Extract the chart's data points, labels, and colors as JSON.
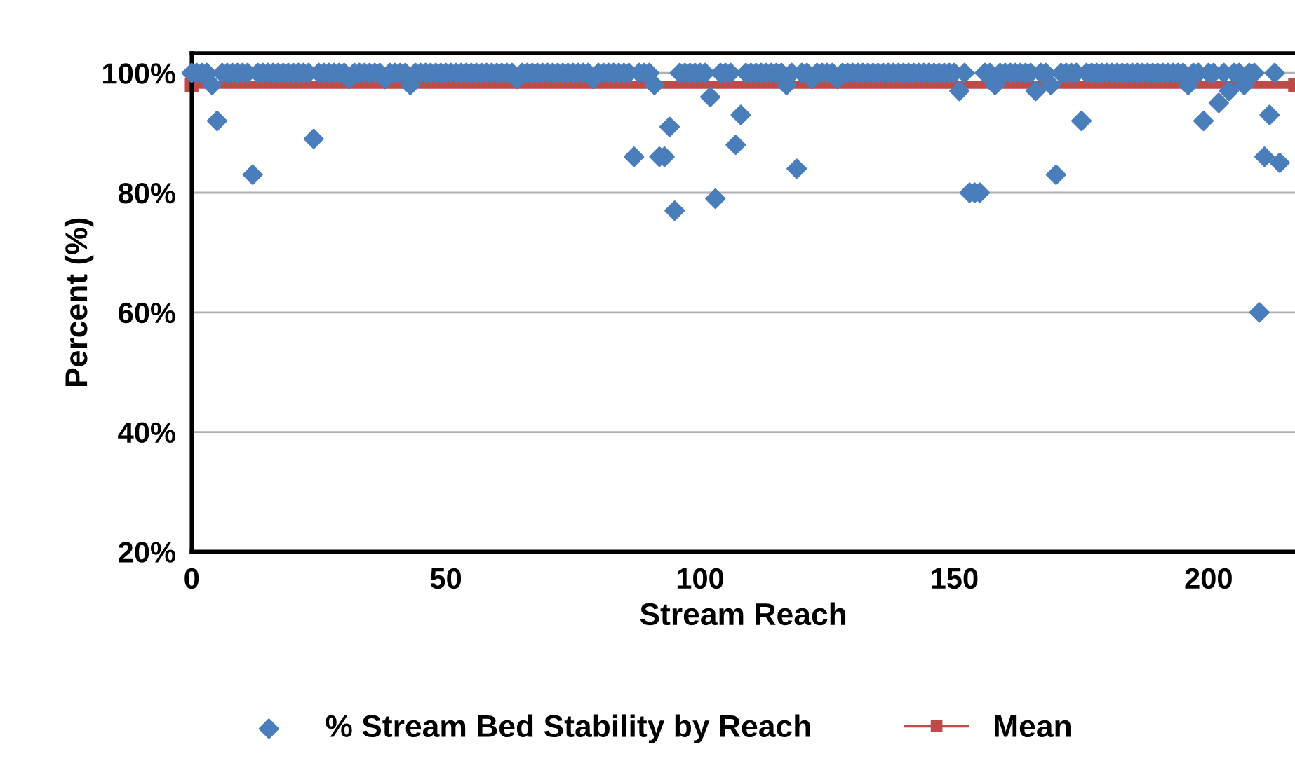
{
  "chart_data": {
    "type": "scatter",
    "xlabel": "Stream Reach",
    "ylabel": "Percent (%)",
    "xlim": [
      0,
      217
    ],
    "xticks": [
      0,
      50,
      100,
      150,
      200
    ],
    "ylim": [
      20,
      103.3
    ],
    "yticks": [
      {
        "value": 20,
        "label": "20%"
      },
      {
        "value": 40,
        "label": "40%"
      },
      {
        "value": 60,
        "label": "60%"
      },
      {
        "value": 80,
        "label": "80%"
      },
      {
        "value": 100,
        "label": "100%"
      }
    ],
    "grid": "y",
    "legend": "bottom",
    "series": [
      {
        "name": "% Stream Bed Stability by Reach",
        "marker": "diamond",
        "color": "#4a7ebb",
        "x": [
          0,
          1,
          2,
          3,
          4,
          5,
          6,
          7,
          8,
          9,
          10,
          11,
          12,
          13,
          14,
          15,
          16,
          17,
          18,
          19,
          20,
          21,
          22,
          23,
          24,
          25,
          26,
          27,
          28,
          29,
          30,
          31,
          32,
          33,
          34,
          35,
          36,
          37,
          38,
          39,
          40,
          41,
          42,
          43,
          44,
          45,
          46,
          47,
          48,
          49,
          50,
          51,
          52,
          53,
          54,
          55,
          56,
          57,
          58,
          59,
          60,
          61,
          62,
          63,
          64,
          65,
          66,
          67,
          68,
          69,
          70,
          71,
          72,
          73,
          74,
          75,
          76,
          77,
          78,
          79,
          80,
          81,
          82,
          83,
          84,
          85,
          86,
          87,
          88,
          89,
          90,
          91,
          92,
          93,
          94,
          95,
          96,
          97,
          98,
          99,
          100,
          101,
          102,
          103,
          104,
          105,
          106,
          107,
          108,
          109,
          110,
          111,
          112,
          113,
          114,
          115,
          116,
          117,
          118,
          119,
          120,
          121,
          122,
          123,
          124,
          125,
          126,
          127,
          128,
          129,
          130,
          131,
          132,
          133,
          134,
          135,
          136,
          137,
          138,
          139,
          140,
          141,
          142,
          143,
          144,
          145,
          146,
          147,
          148,
          149,
          150,
          151,
          152,
          153,
          154,
          155,
          156,
          157,
          158,
          159,
          160,
          161,
          162,
          163,
          164,
          165,
          166,
          167,
          168,
          169,
          170,
          171,
          172,
          173,
          174,
          175,
          176,
          177,
          178,
          179,
          180,
          181,
          182,
          183,
          184,
          185,
          186,
          187,
          188,
          189,
          190,
          191,
          192,
          193,
          194,
          195,
          196,
          197,
          198,
          199,
          200,
          201,
          202,
          203,
          204,
          205,
          206,
          207,
          208,
          209,
          210,
          211,
          212,
          213,
          214
        ],
        "values": [
          100,
          100,
          100,
          100,
          98,
          92,
          100,
          100,
          100,
          100,
          100,
          100,
          83,
          100,
          100,
          100,
          100,
          100,
          100,
          100,
          100,
          100,
          100,
          100,
          89,
          100,
          100,
          100,
          100,
          100,
          100,
          99,
          100,
          100,
          100,
          100,
          100,
          100,
          99,
          100,
          100,
          100,
          100,
          98,
          100,
          100,
          100,
          100,
          100,
          100,
          100,
          100,
          100,
          100,
          100,
          100,
          100,
          100,
          100,
          100,
          100,
          100,
          100,
          100,
          99,
          100,
          100,
          100,
          100,
          100,
          100,
          100,
          100,
          100,
          100,
          100,
          100,
          100,
          100,
          99,
          100,
          100,
          100,
          100,
          100,
          100,
          100,
          86,
          100,
          100,
          100,
          98,
          86,
          86,
          91,
          77,
          100,
          100,
          100,
          100,
          100,
          100,
          96,
          79,
          100,
          100,
          100,
          88,
          93,
          100,
          100,
          100,
          100,
          100,
          100,
          100,
          100,
          98,
          100,
          84,
          100,
          100,
          99,
          100,
          100,
          100,
          100,
          99,
          100,
          100,
          100,
          100,
          100,
          100,
          100,
          100,
          100,
          100,
          100,
          100,
          100,
          100,
          100,
          100,
          100,
          100,
          100,
          100,
          100,
          100,
          100,
          97,
          100,
          80,
          80,
          80,
          100,
          100,
          98,
          100,
          100,
          100,
          100,
          100,
          100,
          100,
          97,
          100,
          100,
          98,
          83,
          100,
          100,
          100,
          100,
          92,
          100,
          100,
          100,
          100,
          100,
          100,
          100,
          100,
          100,
          100,
          100,
          100,
          100,
          100,
          100,
          100,
          100,
          100,
          100,
          100,
          98,
          100,
          100,
          92,
          100,
          100,
          95,
          100,
          97,
          100,
          100,
          98,
          100,
          100,
          60,
          86,
          93,
          100,
          85
        ]
      },
      {
        "name": "Mean",
        "type": "line",
        "marker": "square",
        "color": "#be4b48",
        "x": [
          0,
          217
        ],
        "values": [
          98,
          98
        ]
      }
    ]
  }
}
